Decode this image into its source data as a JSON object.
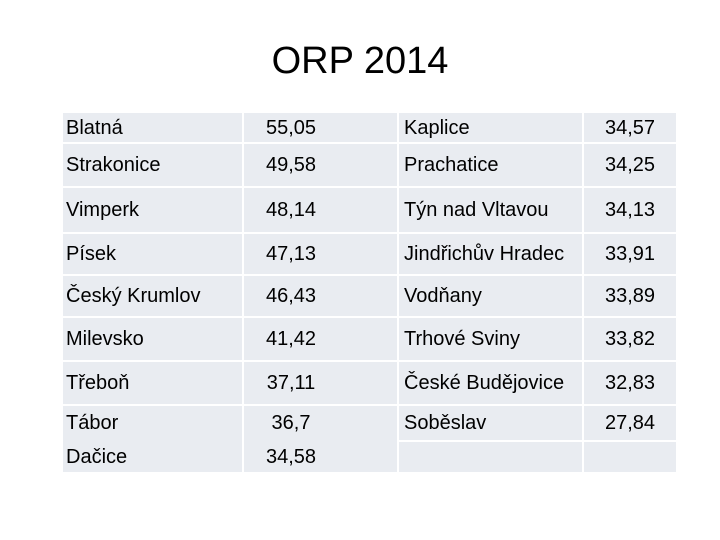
{
  "header": {
    "title": "ORP 2014"
  },
  "table": {
    "rows": [
      [
        "Blatná",
        "55,05",
        "Kaplice",
        "34,57"
      ],
      [
        "Strakonice",
        "49,58",
        "Prachatice",
        "34,25"
      ],
      [
        "Vimperk",
        "48,14",
        "Týn nad Vltavou",
        "34,13"
      ],
      [
        "Písek",
        "47,13",
        "Jindřichův Hradec",
        "33,91"
      ],
      [
        "Český Krumlov",
        "46,43",
        "Vodňany",
        "33,89"
      ],
      [
        "Milevsko",
        "41,42",
        "Trhové Sviny",
        "33,82"
      ],
      [
        "Třeboň",
        "37,11",
        "České Budějovice",
        "32,83"
      ],
      [
        "Tábor",
        "36,7",
        "Soběslav",
        "27,84"
      ],
      [
        "Dačice",
        "34,58"
      ]
    ]
  }
}
